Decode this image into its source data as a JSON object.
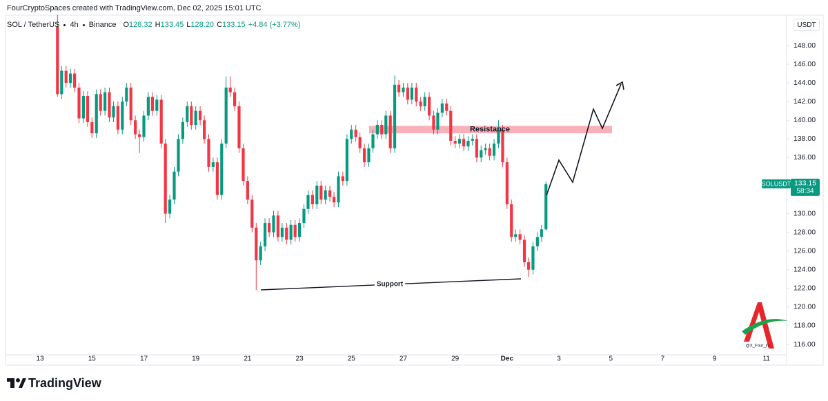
{
  "chart_data": {
    "type": "candlestick",
    "watermark_header": "FourCryptoSpaces created with TradingView.com, Dec 02, 2025 15:01 UTC",
    "interval": "4h",
    "exchange": "Binance",
    "ohlc_letters": [
      "O",
      "H",
      "L",
      "C"
    ],
    "ohlc_labels": [
      "128.32",
      "133.45",
      "128.20",
      "133.15"
    ],
    "change_label": "+4.84 (+3.77%)",
    "currency": "USDT",
    "price_tag_symbol": "SOLUSDT",
    "countdown": "58:34",
    "annotations": {
      "resistance": "Resistance",
      "support": "Support"
    },
    "resistance_zone": [
      138.6,
      139.4
    ],
    "brand": "TradingView",
    "author_mark": "@X_Four_iiv",
    "xlim": [
      11.72,
      41.75
    ],
    "ylim": [
      114.89,
      151.25
    ],
    "xticks": [
      13,
      15,
      17,
      19,
      21,
      23,
      25,
      27,
      29,
      {
        "value": 31,
        "label": "Dec"
      },
      {
        "value": 33,
        "label": "3"
      },
      {
        "value": 35,
        "label": "5"
      },
      {
        "value": 37,
        "label": "7"
      },
      {
        "value": 39,
        "label": "9"
      },
      {
        "value": 41,
        "label": "11"
      }
    ],
    "yticks": [
      {
        "value": 116,
        "label": "116.00"
      },
      {
        "value": 118,
        "label": "118.00"
      },
      {
        "value": 120,
        "label": "120.00"
      },
      {
        "value": 122,
        "label": "122.00"
      },
      {
        "value": 124,
        "label": "124.00"
      },
      {
        "value": 126,
        "label": "126.00"
      },
      {
        "value": 128,
        "label": "128.00"
      },
      {
        "value": 130,
        "label": "130.00"
      },
      {
        "value": 136,
        "label": "136.00"
      },
      {
        "value": 138,
        "label": "138.00"
      },
      {
        "value": 140,
        "label": "140.00"
      },
      {
        "value": 142,
        "label": "142.00"
      },
      {
        "value": 144,
        "label": "144.00"
      },
      {
        "value": 146,
        "label": "146.00"
      },
      {
        "value": 148,
        "label": "148.00"
      }
    ],
    "x": [
      13.67,
      13.83,
      14,
      14.17,
      14.33,
      14.5,
      14.67,
      14.83,
      15,
      15.17,
      15.33,
      15.5,
      15.67,
      15.83,
      16,
      16.17,
      16.33,
      16.5,
      16.67,
      16.83,
      17,
      17.17,
      17.33,
      17.5,
      17.67,
      17.83,
      18,
      18.17,
      18.33,
      18.5,
      18.67,
      18.83,
      19,
      19.17,
      19.33,
      19.5,
      19.67,
      19.83,
      20,
      20.17,
      20.33,
      20.5,
      20.67,
      20.83,
      21,
      21.17,
      21.33,
      21.5,
      21.67,
      21.83,
      22,
      22.17,
      22.33,
      22.5,
      22.67,
      22.83,
      23,
      23.17,
      23.33,
      23.5,
      23.67,
      23.83,
      24,
      24.17,
      24.33,
      24.5,
      24.67,
      24.83,
      25,
      25.17,
      25.33,
      25.5,
      25.67,
      25.83,
      26,
      26.17,
      26.33,
      26.5,
      26.67,
      26.83,
      27,
      27.17,
      27.33,
      27.5,
      27.67,
      27.83,
      28,
      28.17,
      28.33,
      28.5,
      28.67,
      28.83,
      29,
      29.17,
      29.33,
      29.5,
      29.67,
      29.83,
      30,
      30.17,
      30.33,
      30.5,
      30.67,
      30.83,
      31,
      31.17,
      31.33,
      31.5,
      31.67,
      31.83,
      32,
      32.17,
      32.33,
      32.5
    ],
    "series": [
      {
        "name": "SOL / TetherUS",
        "up_color": "#089981",
        "down_color": "#f23645",
        "open": [
          150,
          142.8,
          145.3,
          144.0,
          145.0,
          143.5,
          140.2,
          142.6,
          139.8,
          138.6,
          142.8,
          141.0,
          143.0,
          140.3,
          141.5,
          139.0,
          142.0,
          143.5,
          140.0,
          138.5,
          138.2,
          140.5,
          142.5,
          141.0,
          142.2,
          137.5,
          130.0,
          131.5,
          134.5,
          138.0,
          139.8,
          141.5,
          139.5,
          141.0,
          140.0,
          138.0,
          135.0,
          135.5,
          132.0,
          137.5,
          143.5,
          143.0,
          141.5,
          137.0,
          133.5,
          131.5,
          128.5,
          125.0,
          126.5,
          129.0,
          128.0,
          129.8,
          127.5,
          128.5,
          127.2,
          128.8,
          127.5,
          129.0,
          130.5,
          132.0,
          131.0,
          133.0,
          131.5,
          132.5,
          131.8,
          131.2,
          134.0,
          133.5,
          138.0,
          139.0,
          138.2,
          137.0,
          135.5,
          137.0,
          138.5,
          139.5,
          138.5,
          140.5,
          137.0,
          143.8,
          143.0,
          143.5,
          142.2,
          143.5,
          142.0,
          141.5,
          142.5,
          140.5,
          139.0,
          140.8,
          141.8,
          141.0,
          137.8,
          137.5,
          138.0,
          137.2,
          137.8,
          138.0,
          136.0,
          136.8,
          137.0,
          136.2,
          137.5,
          139.0,
          135.5,
          131.0,
          127.5,
          127.8,
          127.2,
          124.8,
          124.0,
          126.5,
          127.5,
          128.32
        ],
        "high": [
          152,
          145.8,
          145.8,
          145.5,
          145.5,
          144.0,
          143.1,
          143.1,
          140.3,
          143.3,
          143.3,
          143.5,
          143.5,
          142.0,
          142.0,
          142.5,
          144.0,
          144.0,
          140.5,
          139.0,
          141.0,
          143.0,
          143.0,
          142.7,
          142.7,
          138.0,
          132.0,
          135.0,
          138.5,
          140.3,
          142.0,
          142.0,
          141.5,
          141.5,
          140.5,
          138.5,
          136.0,
          136.0,
          138.0,
          144.7,
          144.7,
          143.5,
          142.0,
          137.5,
          134.0,
          132.0,
          129.0,
          127.0,
          129.5,
          129.5,
          130.3,
          130.3,
          129.0,
          129.0,
          129.3,
          129.3,
          129.5,
          131.0,
          132.5,
          132.5,
          133.5,
          133.5,
          133.0,
          133.0,
          132.3,
          134.5,
          134.5,
          138.5,
          139.5,
          139.5,
          138.7,
          137.5,
          137.5,
          139.0,
          140.0,
          140.0,
          141.0,
          141.0,
          144.8,
          144.3,
          144.0,
          144.0,
          144.0,
          144.0,
          142.5,
          143.0,
          143.0,
          141.0,
          141.3,
          142.3,
          142.3,
          141.5,
          138.3,
          138.5,
          138.5,
          138.3,
          138.5,
          138.5,
          137.3,
          137.5,
          137.5,
          138.0,
          140.0,
          139.5,
          136.0,
          131.5,
          128.3,
          128.3,
          127.7,
          125.3,
          127.0,
          128.0,
          128.8,
          133.45
        ],
        "low": [
          142.5,
          142.3,
          143.5,
          143.5,
          143.0,
          139.7,
          139.7,
          139.3,
          138.1,
          138.1,
          140.5,
          140.5,
          139.8,
          139.8,
          138.5,
          138.5,
          141.5,
          139.5,
          138.0,
          136.5,
          137.7,
          140.0,
          140.5,
          140.5,
          137.0,
          129.0,
          129.5,
          131.0,
          134.0,
          137.5,
          139.3,
          139.0,
          139.0,
          139.5,
          137.5,
          134.5,
          134.5,
          131.5,
          131.5,
          137.0,
          142.5,
          141.0,
          136.5,
          133.0,
          131.0,
          128.0,
          121.8,
          124.5,
          126.0,
          127.5,
          127.5,
          127.0,
          127.0,
          126.7,
          126.7,
          127.0,
          127.0,
          128.5,
          130.0,
          130.5,
          130.5,
          131.0,
          131.0,
          131.3,
          130.7,
          130.7,
          133.0,
          133.0,
          137.5,
          137.7,
          136.5,
          135.0,
          135.0,
          136.5,
          138.0,
          138.0,
          138.0,
          136.5,
          136.5,
          142.5,
          142.5,
          141.7,
          141.7,
          141.5,
          141.0,
          141.0,
          140.0,
          138.5,
          138.5,
          140.3,
          140.5,
          137.3,
          137.0,
          137.0,
          136.7,
          136.7,
          137.3,
          135.5,
          135.5,
          136.3,
          135.7,
          135.7,
          137.0,
          135.0,
          130.5,
          127.0,
          127.0,
          126.7,
          124.3,
          123.2,
          123.5,
          126.0,
          127.0,
          128.2
        ],
        "close": [
          142.8,
          145.3,
          144.0,
          145.0,
          143.5,
          140.2,
          142.6,
          139.8,
          138.6,
          142.8,
          141.0,
          143.0,
          140.3,
          141.5,
          139.0,
          142.0,
          143.5,
          140.0,
          138.5,
          138.2,
          140.5,
          142.5,
          141.0,
          142.2,
          137.5,
          130.0,
          131.5,
          134.5,
          138.0,
          139.8,
          141.5,
          139.5,
          141.0,
          140.0,
          138.0,
          135.0,
          135.5,
          132.0,
          137.5,
          143.5,
          143.0,
          141.5,
          137.0,
          133.5,
          131.5,
          128.5,
          125.0,
          126.5,
          129.0,
          128.0,
          129.8,
          127.5,
          128.5,
          127.2,
          128.8,
          127.5,
          129.0,
          130.5,
          132.0,
          131.0,
          133.0,
          131.5,
          132.5,
          131.8,
          131.2,
          134.0,
          133.5,
          138.0,
          139.0,
          138.2,
          137.0,
          135.5,
          137.0,
          138.5,
          139.5,
          138.5,
          140.5,
          137.0,
          143.8,
          143.0,
          143.5,
          142.2,
          143.5,
          142.0,
          141.5,
          142.5,
          140.5,
          139.0,
          140.8,
          141.8,
          141.0,
          137.8,
          137.5,
          138.0,
          137.2,
          137.8,
          138.0,
          136.0,
          136.8,
          137.0,
          136.2,
          137.5,
          139.0,
          135.5,
          131.0,
          127.5,
          127.8,
          127.2,
          124.8,
          124.0,
          126.5,
          127.5,
          128.32,
          133.15
        ]
      }
    ]
  }
}
